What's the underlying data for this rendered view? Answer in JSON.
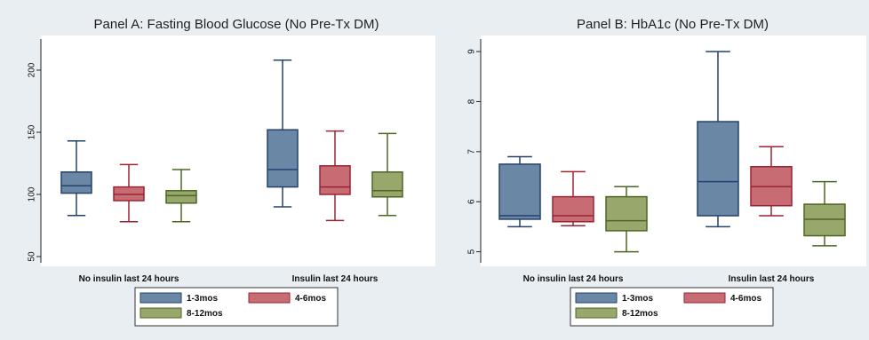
{
  "figure": {
    "background": "#e9eef3"
  },
  "legend_items": [
    {
      "label": "1-3mos",
      "fill": "#6b87a6",
      "stroke": "#24416b"
    },
    {
      "label": "4-6mos",
      "fill": "#c86c74",
      "stroke": "#9a2433"
    },
    {
      "label": "8-12mos",
      "fill": "#98a86c",
      "stroke": "#4d6622"
    }
  ],
  "chart_data": [
    {
      "type": "box",
      "title": "Panel A: Fasting Blood Glucose (No Pre-Tx DM)",
      "xlabel": "",
      "ylabel": "",
      "categories": [
        "No insulin last 24 hours",
        "Insulin last 24 hours"
      ],
      "y_ticks": [
        50,
        100,
        150,
        200
      ],
      "y_tick_labels": [
        "50",
        "100",
        "150",
        "200"
      ],
      "ylim": [
        45,
        225
      ],
      "grid": false,
      "legend_position": "bottom",
      "series": [
        {
          "name": "1-3mos",
          "boxes": [
            {
              "low": 83,
              "q1": 101,
              "median": 107,
              "q3": 118,
              "high": 143
            },
            {
              "low": 90,
              "q1": 106,
              "median": 120,
              "q3": 152,
              "high": 208
            }
          ]
        },
        {
          "name": "4-6mos",
          "boxes": [
            {
              "low": 78,
              "q1": 95,
              "median": 100,
              "q3": 106,
              "high": 124
            },
            {
              "low": 79,
              "q1": 100,
              "median": 106,
              "q3": 123,
              "high": 151
            }
          ]
        },
        {
          "name": "8-12mos",
          "boxes": [
            {
              "low": 78,
              "q1": 93,
              "median": 99,
              "q3": 103,
              "high": 120
            },
            {
              "low": 83,
              "q1": 98,
              "median": 103,
              "q3": 118,
              "high": 149
            }
          ]
        }
      ]
    },
    {
      "type": "box",
      "title": "Panel B: HbA1c (No Pre-Tx DM)",
      "xlabel": "",
      "ylabel": "",
      "categories": [
        "No insulin last 24 hours",
        "Insulin last 24 hours"
      ],
      "y_ticks": [
        5,
        6,
        7,
        8,
        9
      ],
      "y_tick_labels": [
        "5",
        "6",
        "7",
        "8",
        "9"
      ],
      "ylim": [
        4.78,
        9.25
      ],
      "grid": false,
      "legend_position": "bottom",
      "series": [
        {
          "name": "1-3mos",
          "boxes": [
            {
              "low": 5.5,
              "q1": 5.65,
              "median": 5.72,
              "q3": 6.75,
              "high": 6.9
            },
            {
              "low": 5.5,
              "q1": 5.72,
              "median": 6.4,
              "q3": 7.6,
              "high": 9.0
            }
          ]
        },
        {
          "name": "4-6mos",
          "boxes": [
            {
              "low": 5.52,
              "q1": 5.6,
              "median": 5.72,
              "q3": 6.1,
              "high": 6.6
            },
            {
              "low": 5.72,
              "q1": 5.92,
              "median": 6.3,
              "q3": 6.7,
              "high": 7.1
            }
          ]
        },
        {
          "name": "8-12mos",
          "boxes": [
            {
              "low": 5.0,
              "q1": 5.42,
              "median": 5.62,
              "q3": 6.1,
              "high": 6.3
            },
            {
              "low": 5.12,
              "q1": 5.32,
              "median": 5.65,
              "q3": 5.95,
              "high": 6.4
            }
          ]
        }
      ]
    }
  ]
}
